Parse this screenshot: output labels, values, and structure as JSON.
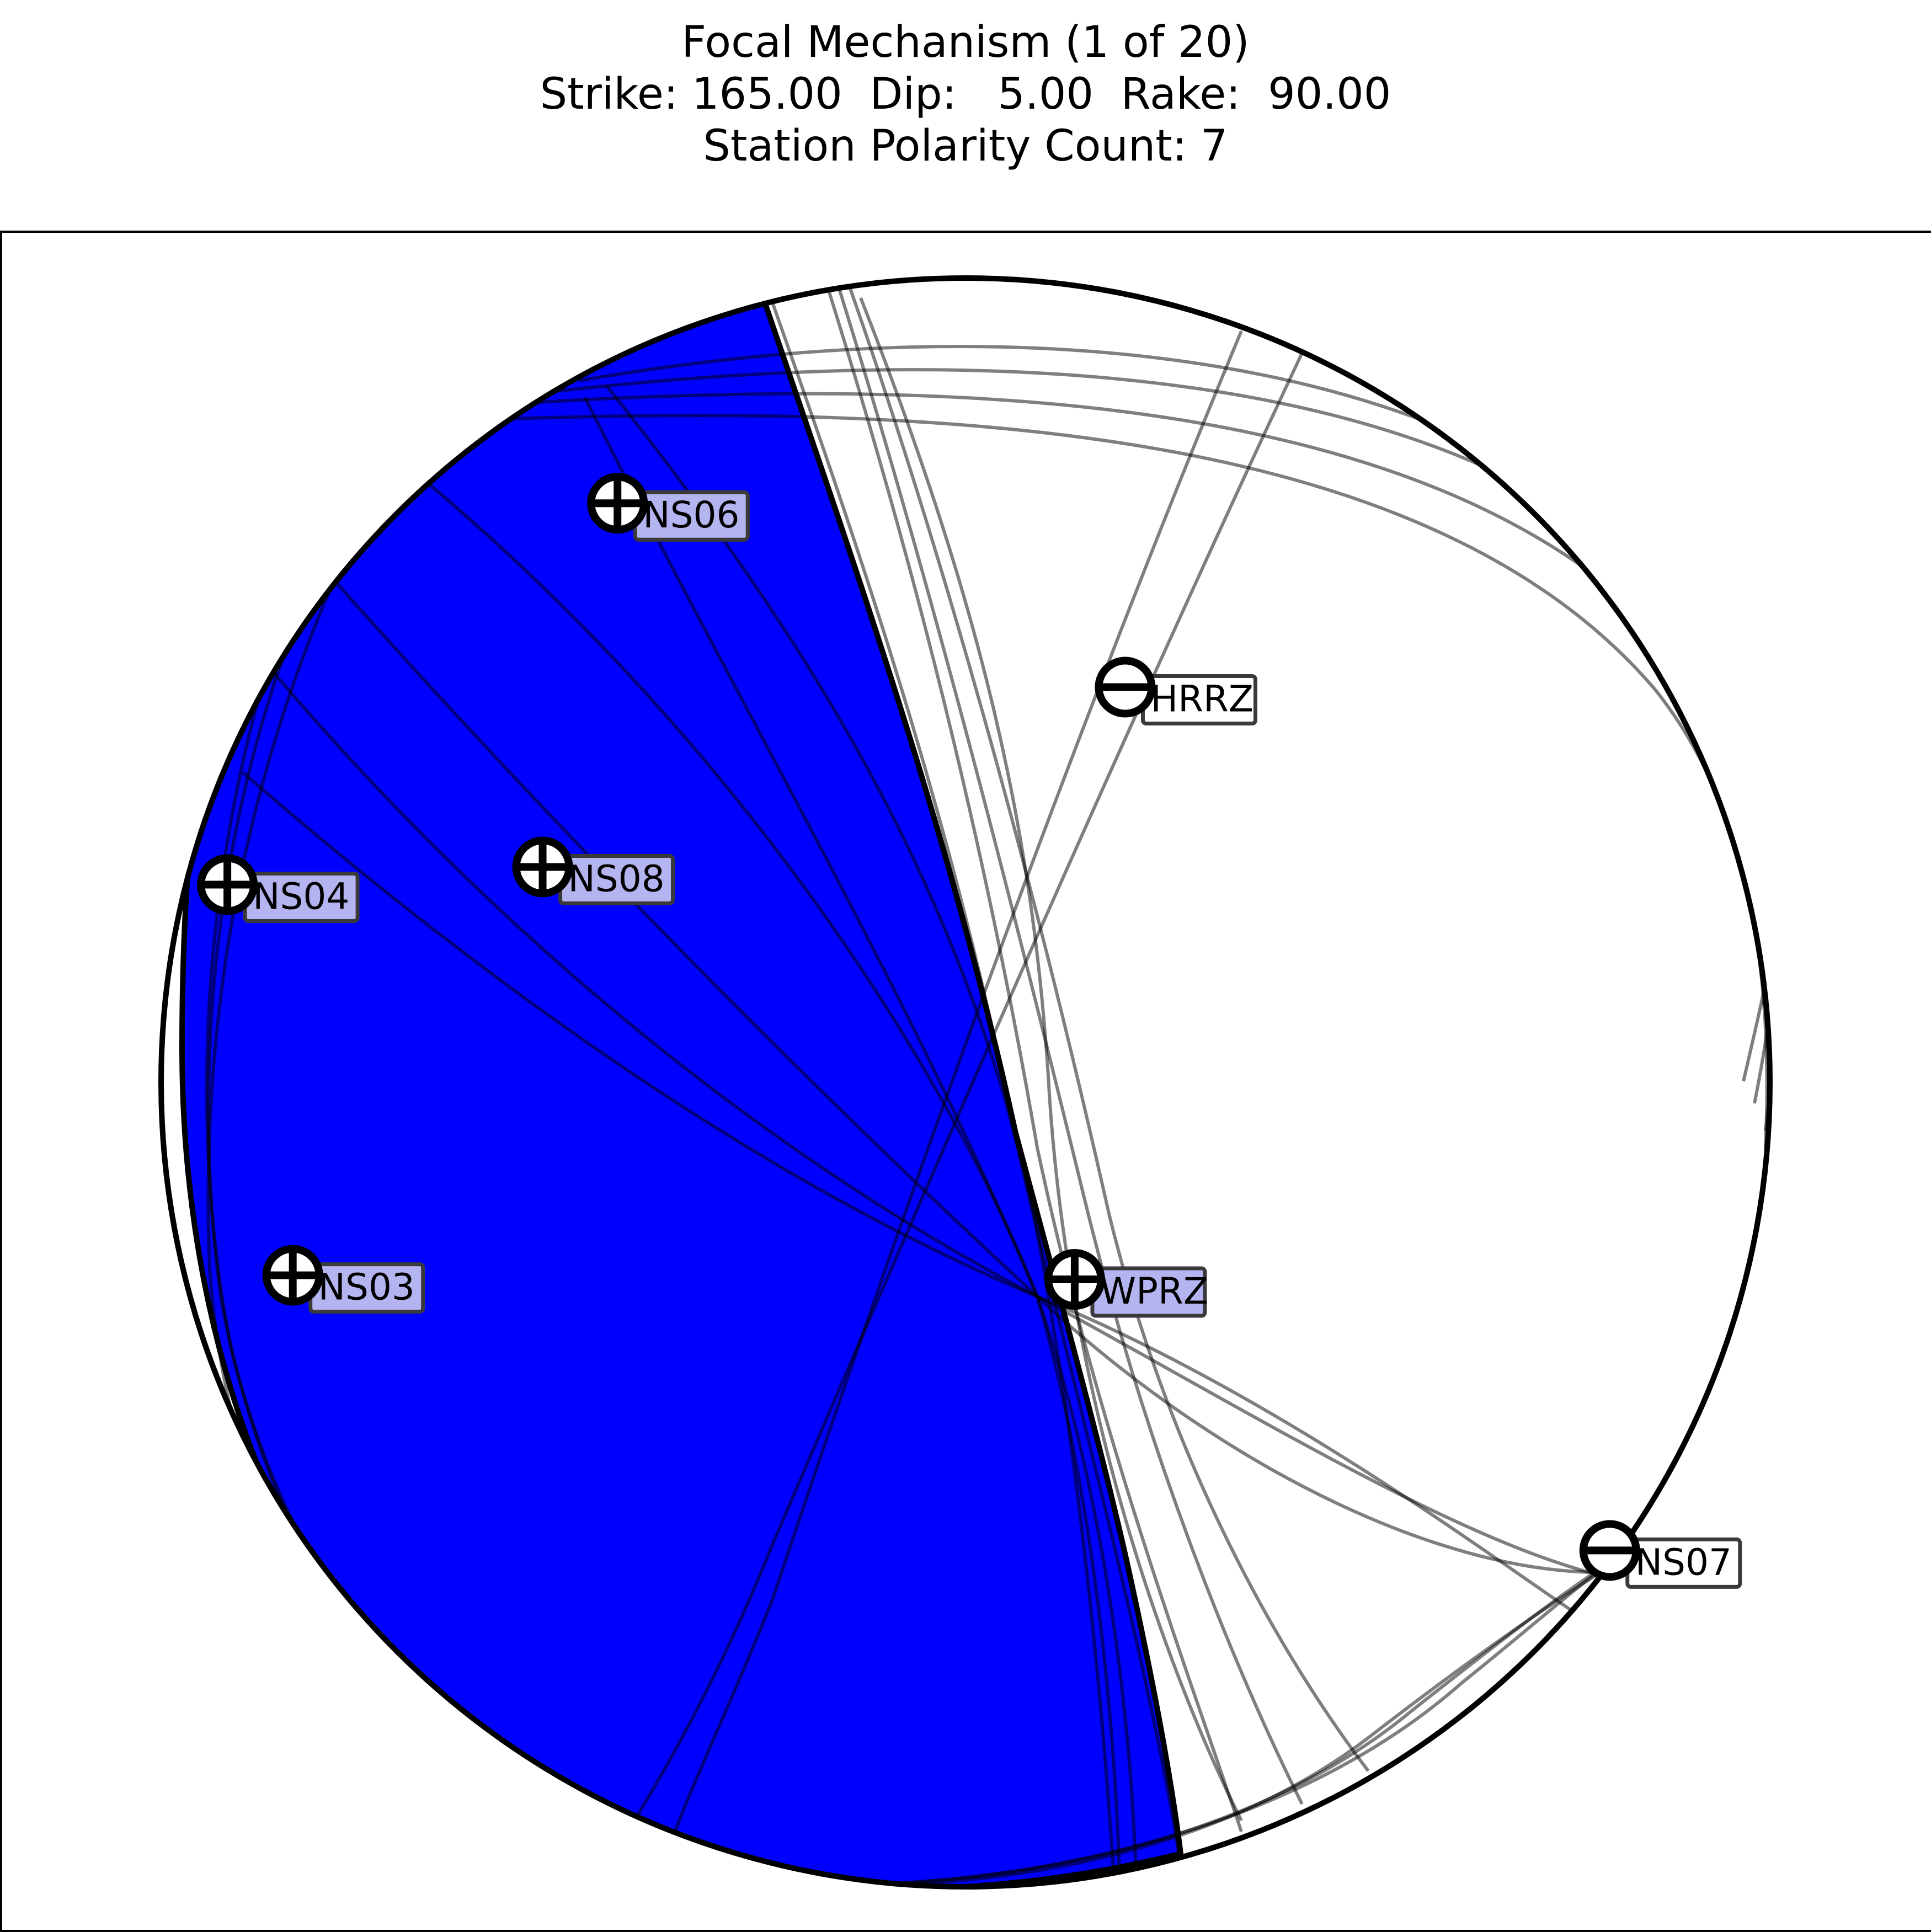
{
  "title": {
    "line1": "Focal Mechanism (1 of 20)",
    "line2": "Strike: 165.00  Dip:   5.00  Rake:  90.00",
    "line3": "Station Polarity Count: 7"
  },
  "colors": {
    "compression_fill": "#0000ff",
    "dilatation_fill": "#ffffff",
    "positive_label_bg": "#b4b4f0",
    "negative_label_bg": "#ffffff",
    "nodal_line": "#000000"
  },
  "chart_data": {
    "type": "scatter",
    "projection": "lower-hemisphere stereonet",
    "mechanism": {
      "strike": 165.0,
      "dip": 5.0,
      "rake": 90.0,
      "index": 1,
      "total": 20
    },
    "stations": [
      {
        "name": "NS06",
        "polarity": "+",
        "azimuth": 329,
        "takeoff_frac": 0.84
      },
      {
        "name": "HRRZ",
        "polarity": "-",
        "azimuth": 22,
        "takeoff_frac": 0.53
      },
      {
        "name": "NS04",
        "polarity": "+",
        "azimuth": 285,
        "takeoff_frac": 0.95
      },
      {
        "name": "NS08",
        "polarity": "+",
        "azimuth": 297,
        "takeoff_frac": 0.59
      },
      {
        "name": "NS03",
        "polarity": "+",
        "azimuth": 254,
        "takeoff_frac": 0.87
      },
      {
        "name": "WPRZ",
        "polarity": "+",
        "azimuth": 151,
        "takeoff_frac": 0.28
      },
      {
        "name": "NS07",
        "polarity": "-",
        "azimuth": 126,
        "takeoff_frac": 0.99
      }
    ],
    "polarity_count": 7,
    "mechanism_count": 20
  }
}
